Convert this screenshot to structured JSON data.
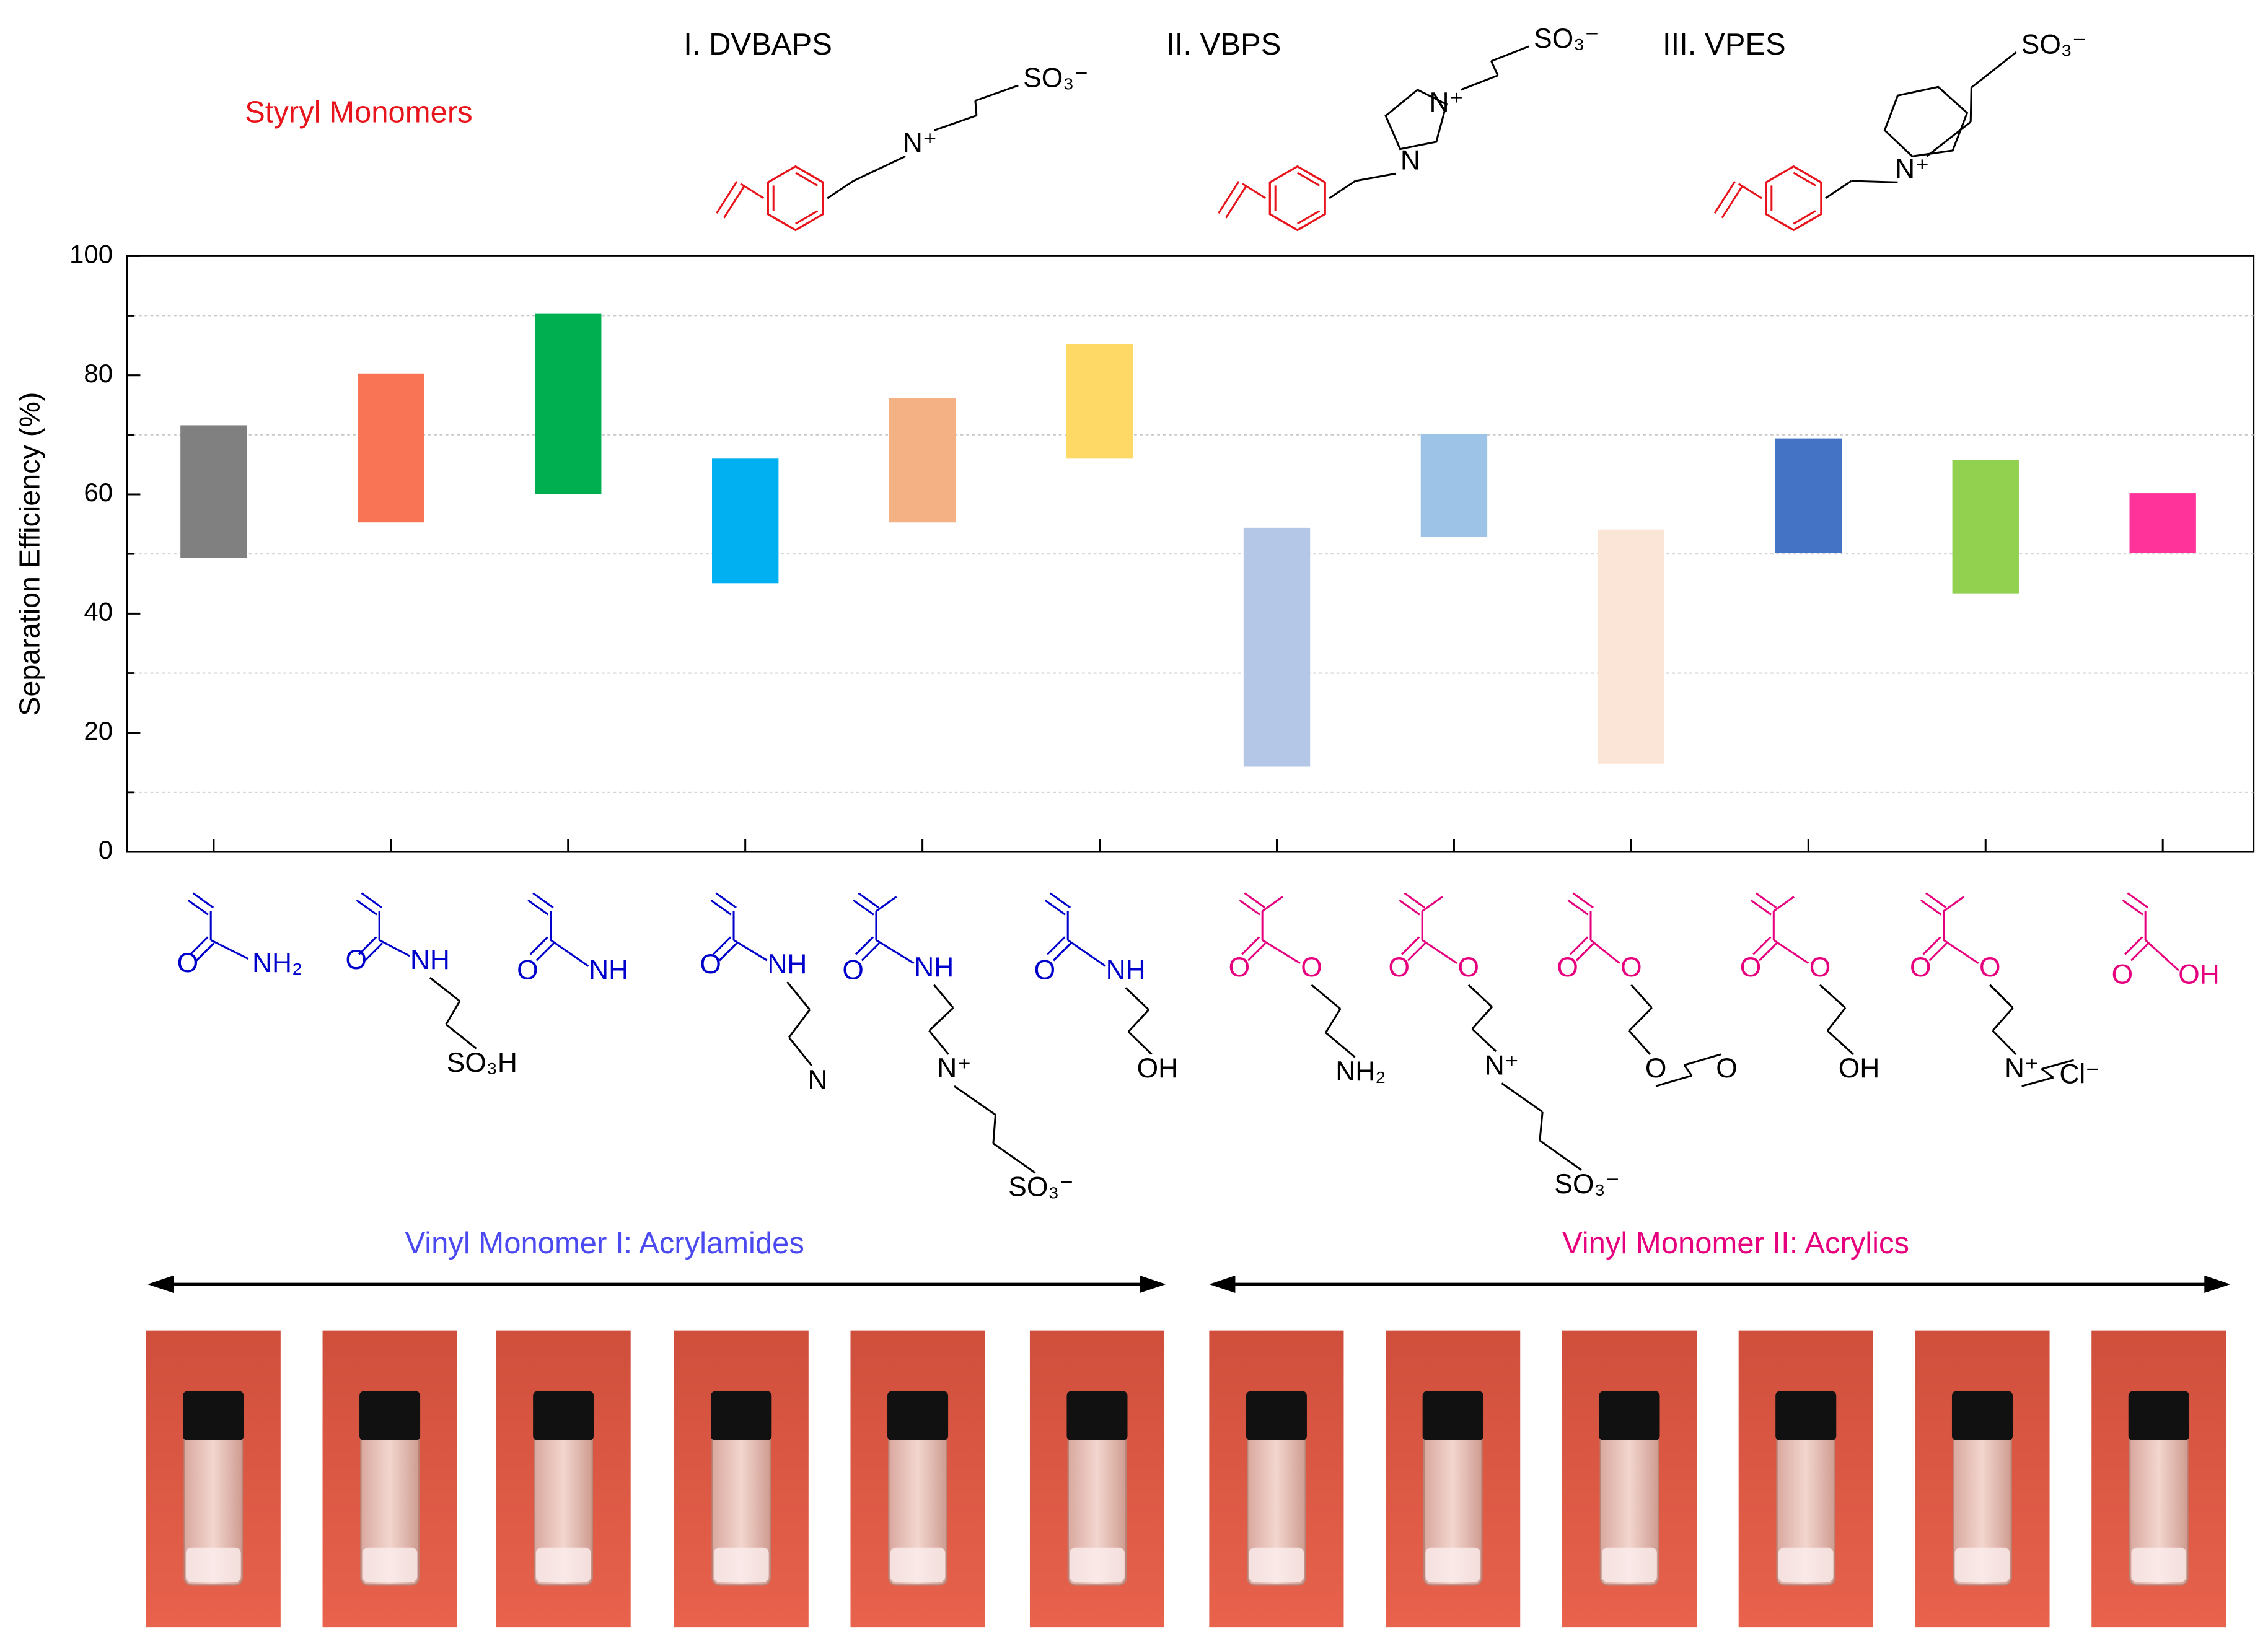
{
  "header": {
    "styryl_label": "Styryl Monomers",
    "styryl_color": "#e8141c",
    "monomers": [
      {
        "name": "I. DVBAPS",
        "atoms": [
          "N⁺",
          "SO₃⁻"
        ]
      },
      {
        "name": "II. VBPS",
        "atoms": [
          "N",
          "N⁺",
          "SO₃⁻"
        ]
      },
      {
        "name": "III. VPES",
        "atoms": [
          "N⁺",
          "SO₃⁻"
        ]
      }
    ]
  },
  "chart_data": {
    "type": "range_bar",
    "ylabel": "Separation Efficiency (%)",
    "categories": [
      null,
      null,
      null,
      null,
      null,
      null,
      null,
      null,
      null,
      null,
      null,
      null
    ],
    "values": [
      [
        49.3,
        71.6
      ],
      [
        55.3,
        80.3
      ],
      [
        60.0,
        90.3
      ],
      [
        45.1,
        66.0
      ],
      [
        55.3,
        76.2
      ],
      [
        66.0,
        85.2
      ],
      [
        14.3,
        54.4
      ],
      [
        52.9,
        70.1
      ],
      [
        14.8,
        54.1
      ],
      [
        50.2,
        69.4
      ],
      [
        43.4,
        65.8
      ],
      [
        50.2,
        60.2
      ]
    ],
    "colors": [
      "#808080",
      "#f87454",
      "#00b050",
      "#00b0f0",
      "#f4b183",
      "#ffd966",
      "#b4c7e7",
      "#9dc3e6",
      "#fbe5d6",
      "#4472c4",
      "#92d050",
      "#ff3399"
    ],
    "ylim": [
      0,
      100
    ],
    "yticks": [
      0,
      20,
      40,
      60,
      80,
      100
    ],
    "grid_ticks": [
      10,
      30,
      50,
      70,
      90
    ],
    "grid": true
  },
  "groups": [
    {
      "label": "Vinyl Monomer I: Acrylamides",
      "label_color": "#4a4af0",
      "color": "#0000cc",
      "monomers": [
        {
          "atoms": [
            "O",
            "NH₂"
          ]
        },
        {
          "atoms": [
            "O",
            "NH",
            "SO₃H"
          ]
        },
        {
          "atoms": [
            "O",
            "NH"
          ]
        },
        {
          "atoms": [
            "O",
            "NH",
            "N"
          ]
        },
        {
          "atoms": [
            "O",
            "NH",
            "N⁺",
            "SO₃⁻"
          ]
        },
        {
          "atoms": [
            "O",
            "NH",
            "OH"
          ]
        }
      ]
    },
    {
      "label": "Vinyl Monomer II: Acrylics",
      "label_color": "#e6007e",
      "color": "#e6007e",
      "monomers": [
        {
          "atoms": [
            "O",
            "O",
            "NH₂"
          ]
        },
        {
          "atoms": [
            "O",
            "O",
            "N⁺",
            "SO₃⁻"
          ]
        },
        {
          "atoms": [
            "O",
            "O",
            "O",
            "O"
          ]
        },
        {
          "atoms": [
            "O",
            "O",
            "OH"
          ]
        },
        {
          "atoms": [
            "O",
            "O",
            "N⁺",
            "Cl⁻"
          ]
        },
        {
          "atoms": [
            "O",
            "OH"
          ]
        }
      ]
    }
  ]
}
